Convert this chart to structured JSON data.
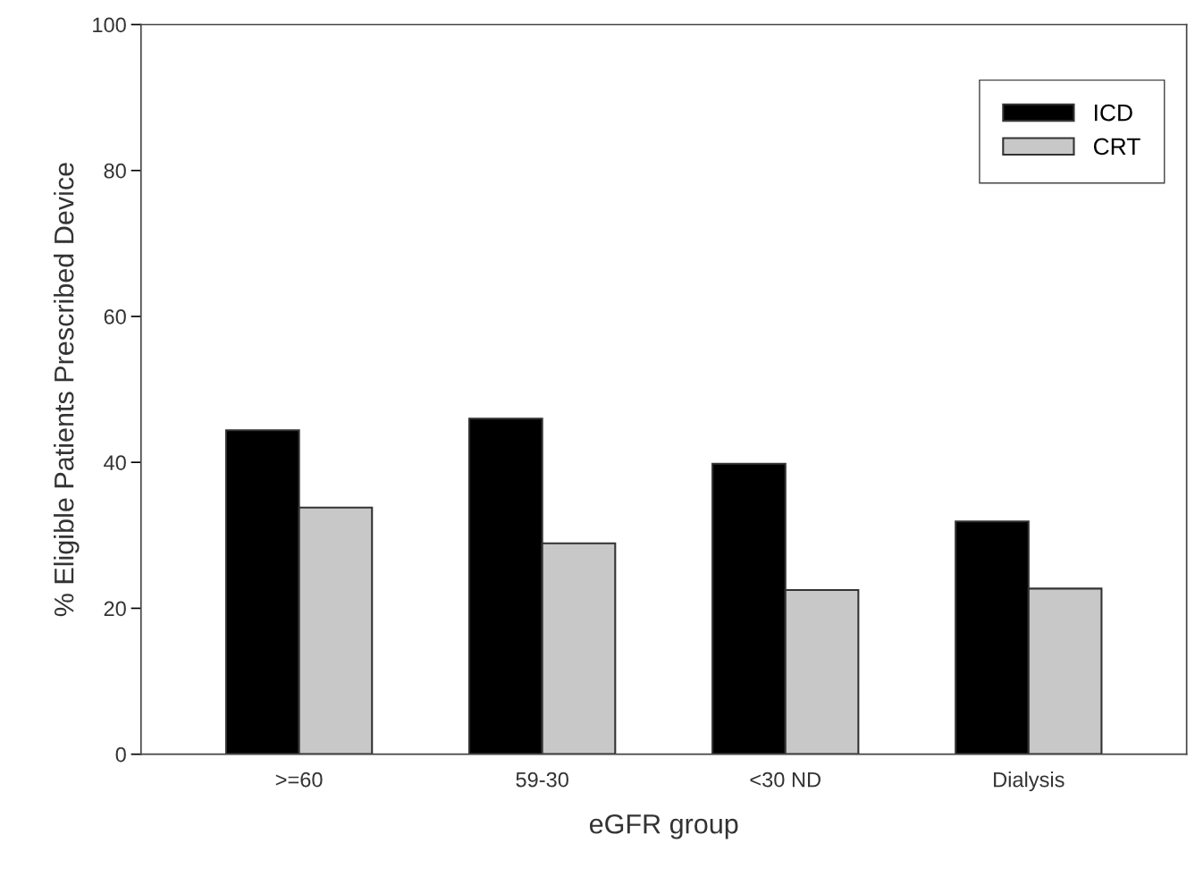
{
  "chart_data": {
    "type": "bar",
    "xlabel": "eGFR group",
    "ylabel": "% Eligible Patients Prescribed Device",
    "categories": [
      ">=60",
      "59-30",
      "<30 ND",
      "Dialysis"
    ],
    "series": [
      {
        "name": "ICD",
        "color": "#000000",
        "values": [
          44.4,
          46.0,
          39.8,
          31.9
        ]
      },
      {
        "name": "CRT",
        "color": "#c8c8c8",
        "values": [
          33.8,
          28.9,
          22.5,
          22.7
        ]
      }
    ],
    "ylim": [
      0,
      100
    ],
    "yticks": [
      0,
      20,
      40,
      60,
      80,
      100
    ],
    "grid": false,
    "legend": "top right"
  }
}
